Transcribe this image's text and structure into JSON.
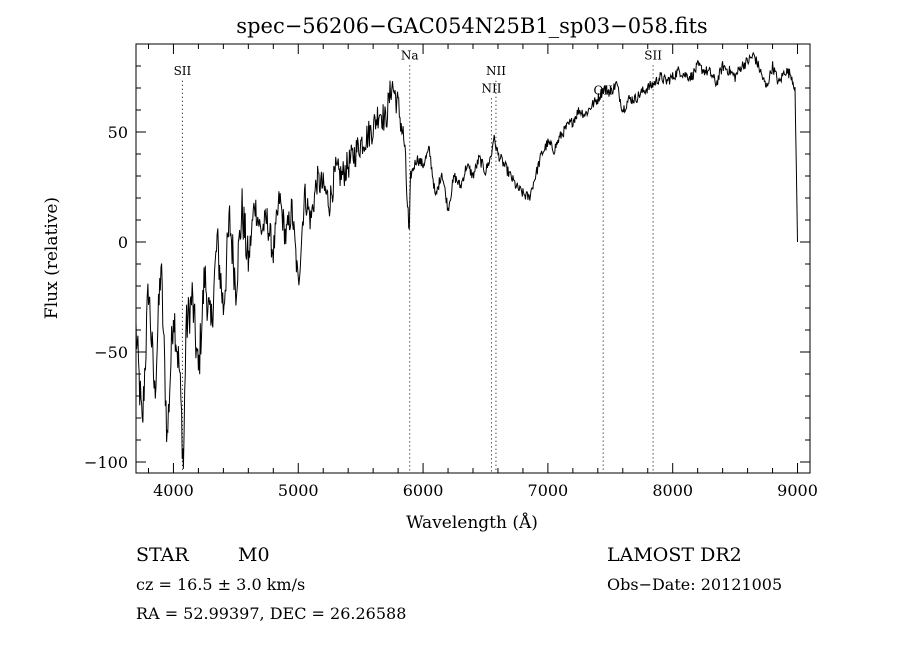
{
  "chart_data": {
    "type": "line",
    "title": "spec−56206−GAC054N25B1_sp03−058.fits",
    "xlabel": "Wavelength (Å)",
    "ylabel": "Flux (relative)",
    "xlim": [
      3700,
      9100
    ],
    "ylim": [
      -105,
      90
    ],
    "xticks": [
      4000,
      5000,
      6000,
      7000,
      8000,
      9000
    ],
    "xtick_labels": [
      "4000",
      "5000",
      "6000",
      "7000",
      "8000",
      "9000"
    ],
    "yticks": [
      -100,
      -50,
      0,
      50
    ],
    "ytick_labels": [
      "−100",
      "−50",
      "0",
      "50"
    ],
    "grid": false,
    "series": [
      {
        "x": [
          3700,
          3750,
          3800,
          3850,
          3900,
          3950,
          4000,
          4050,
          4080,
          4100,
          4150,
          4200,
          4250,
          4300,
          4350,
          4400,
          4450,
          4500,
          4550,
          4600,
          4650,
          4700,
          4750,
          4800,
          4850,
          4900,
          4950,
          5000,
          5050,
          5100,
          5150,
          5200,
          5250,
          5300,
          5350,
          5400,
          5450,
          5500,
          5550,
          5600,
          5650,
          5700,
          5750,
          5800,
          5850,
          5890,
          5900,
          5950,
          6000,
          6050,
          6100,
          6150,
          6200,
          6250,
          6300,
          6350,
          6400,
          6450,
          6500,
          6550,
          6563,
          6600,
          6650,
          6700,
          6750,
          6800,
          6850,
          6900,
          6950,
          7000,
          7050,
          7100,
          7150,
          7200,
          7250,
          7300,
          7350,
          7400,
          7450,
          7500,
          7550,
          7600,
          7650,
          7700,
          7750,
          7800,
          7850,
          7900,
          7950,
          8000,
          8050,
          8100,
          8150,
          8200,
          8250,
          8300,
          8350,
          8400,
          8450,
          8500,
          8550,
          8600,
          8650,
          8700,
          8750,
          8800,
          8850,
          8900,
          8950,
          8980,
          9000
        ],
        "y": [
          -40,
          -85,
          -20,
          -70,
          -10,
          -90,
          -30,
          -60,
          -102,
          -40,
          -25,
          -60,
          -15,
          -40,
          0,
          -30,
          10,
          -20,
          15,
          -10,
          18,
          5,
          10,
          -5,
          20,
          2,
          15,
          -20,
          22,
          10,
          28,
          25,
          18,
          32,
          30,
          35,
          40,
          45,
          48,
          52,
          60,
          55,
          72,
          62,
          45,
          0,
          30,
          38,
          35,
          42,
          20,
          32,
          15,
          30,
          25,
          35,
          30,
          38,
          32,
          40,
          48,
          40,
          35,
          30,
          25,
          22,
          20,
          30,
          40,
          45,
          42,
          48,
          52,
          55,
          60,
          58,
          62,
          65,
          70,
          68,
          72,
          60,
          65,
          65,
          68,
          70,
          72,
          75,
          73,
          75,
          78,
          76,
          75,
          80,
          78,
          77,
          72,
          80,
          78,
          75,
          80,
          82,
          85,
          78,
          70,
          80,
          72,
          78,
          76,
          70,
          0
        ]
      }
    ],
    "line_markers": [
      {
        "label": "SII",
        "x": 4072,
        "label_y": 76
      },
      {
        "label": "Na",
        "x": 5893,
        "label_y": 83
      },
      {
        "label": "NII",
        "x": 6548,
        "label_y": 68
      },
      {
        "label": "NII",
        "x": 6584,
        "label_y": 76
      },
      {
        "label": "OII",
        "x": 7443,
        "label_y": 67
      },
      {
        "label": "SII",
        "x": 7843,
        "label_y": 83
      }
    ]
  },
  "info": {
    "object": "STAR",
    "subclass": "M0",
    "survey": "LAMOST DR2",
    "cz": "cz = 16.5 ± 3.0 km/s",
    "obs_date": "Obs−Date: 20121005",
    "coords": "RA =  52.99397, DEC =  26.26588"
  }
}
